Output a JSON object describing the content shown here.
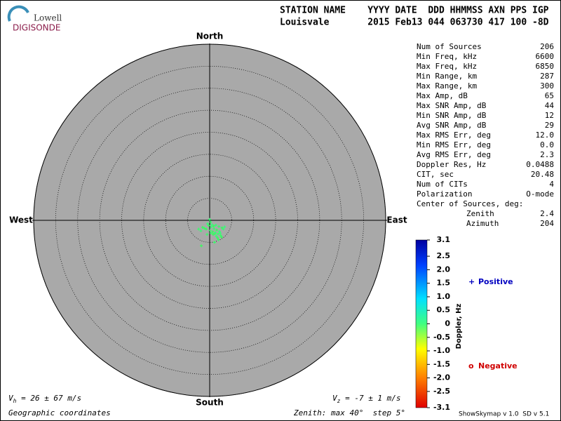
{
  "logo": {
    "line1": "Lowell",
    "line2": "DIGISONDE"
  },
  "header": {
    "labels": "STATION NAME    YYYY DATE  DDD HHMMSS AXN PPS IGP",
    "values": "Louisvale       2015 Feb13 044 063730 417 100 -8D"
  },
  "stats": [
    [
      "Num of Sources",
      "206"
    ],
    [
      "Min Freq, kHz",
      "6600"
    ],
    [
      "Max Freq, kHz",
      "6850"
    ],
    [
      "Min Range, km",
      "287"
    ],
    [
      "Max Range, km",
      "300"
    ],
    [
      "Max Amp, dB",
      "65"
    ],
    [
      "Max SNR Amp, dB",
      "44"
    ],
    [
      "Min SNR Amp, dB",
      "12"
    ],
    [
      "Avg SNR Amp, dB",
      "29"
    ],
    [
      "Max RMS Err, deg",
      "12.0"
    ],
    [
      "Min RMS Err, deg",
      "0.0"
    ],
    [
      "Avg RMS Err, deg",
      "2.3"
    ],
    [
      "Doppler Res, Hz",
      "0.0488"
    ],
    [
      "CIT, sec",
      "20.48"
    ],
    [
      "Num of CITs",
      "4"
    ],
    [
      "Polarization",
      "O-mode"
    ]
  ],
  "center": {
    "title": "Center of Sources, deg:",
    "rows": [
      [
        "Zenith",
        "2.4"
      ],
      [
        "Azimuth",
        "204"
      ]
    ]
  },
  "chart_data": {
    "type": "skymap",
    "directions": {
      "north": "North",
      "south": "South",
      "west": "West",
      "east": "East"
    },
    "rlim": [
      0,
      40
    ],
    "rticks": [
      5,
      10,
      15,
      20,
      25,
      30,
      35,
      40
    ],
    "points": {
      "x": [
        -1.2,
        -0.8,
        -0.5,
        -0.2,
        0.1,
        0.4,
        0.7,
        1.0,
        1.3,
        1.6,
        1.9,
        2.2,
        2.5,
        2.8,
        3.1,
        -2.5,
        -2.0,
        -1.6,
        0.2,
        0.5,
        0.9,
        1.2,
        1.5,
        1.8,
        2.1,
        2.4,
        0.3,
        0.8,
        1.4,
        2.0,
        2.7,
        3.4,
        -0.6,
        -1.9,
        0.0,
        1.1
      ],
      "y": [
        -1.8,
        -2.0,
        -0.8,
        -1.2,
        -2.3,
        -1.5,
        -2.6,
        -1.9,
        -2.8,
        -2.2,
        -3.1,
        -2.5,
        -3.4,
        -1.7,
        -2.0,
        -2.0,
        -2.4,
        -1.6,
        -0.4,
        -1.0,
        -1.3,
        -3.0,
        -3.6,
        -4.0,
        -1.4,
        -2.9,
        -2.9,
        -3.2,
        -1.1,
        -4.4,
        -3.8,
        -1.5,
        -3.2,
        -5.8,
        0.2,
        -5.0
      ],
      "doppler": [
        0.4,
        0.3,
        0.5,
        0.3,
        0.4,
        0.5,
        0.3,
        0.4,
        0.5,
        0.3,
        0.4,
        0.5,
        0.4,
        0.3,
        0.5,
        0.4,
        0.5,
        0.3,
        0.4,
        0.5,
        0.3,
        0.4,
        0.5,
        0.3,
        0.4,
        0.5,
        0.4,
        0.3,
        0.5,
        0.4,
        0.3,
        0.5,
        0.4,
        0.3,
        0.5,
        0.4
      ]
    },
    "colorbar": {
      "label": "Doppler, Hz",
      "lim": [
        -3.1,
        3.1
      ],
      "ticks": [
        3.1,
        2.5,
        {
          "value": 2,
          "label": "2.0"
        },
        1.5,
        {
          "value": 1,
          "label": "1.0"
        },
        0.5,
        0,
        -0.5,
        {
          "value": -1,
          "label": "-1.0"
        },
        -1.5,
        {
          "value": -2,
          "label": "-2.0"
        },
        -2.5,
        -3.1
      ]
    },
    "legend": [
      {
        "symbol": "+",
        "text": "Positive",
        "color": "#0000c0"
      },
      {
        "symbol": "o",
        "text": "Negative",
        "color": "#d00000"
      }
    ]
  },
  "footer": {
    "vh": {
      "v": "V",
      "sub": "h",
      "rest": " = 26 ± 67 m/s"
    },
    "vz": {
      "v": "V",
      "sub": "z",
      "rest": " = -7 ± 1 m/s"
    },
    "coords": "Geographic coordinates",
    "zenith": "Zenith: max 40°  step 5°",
    "version": "ShowSkymap v 1.0  SD v 5.1"
  }
}
